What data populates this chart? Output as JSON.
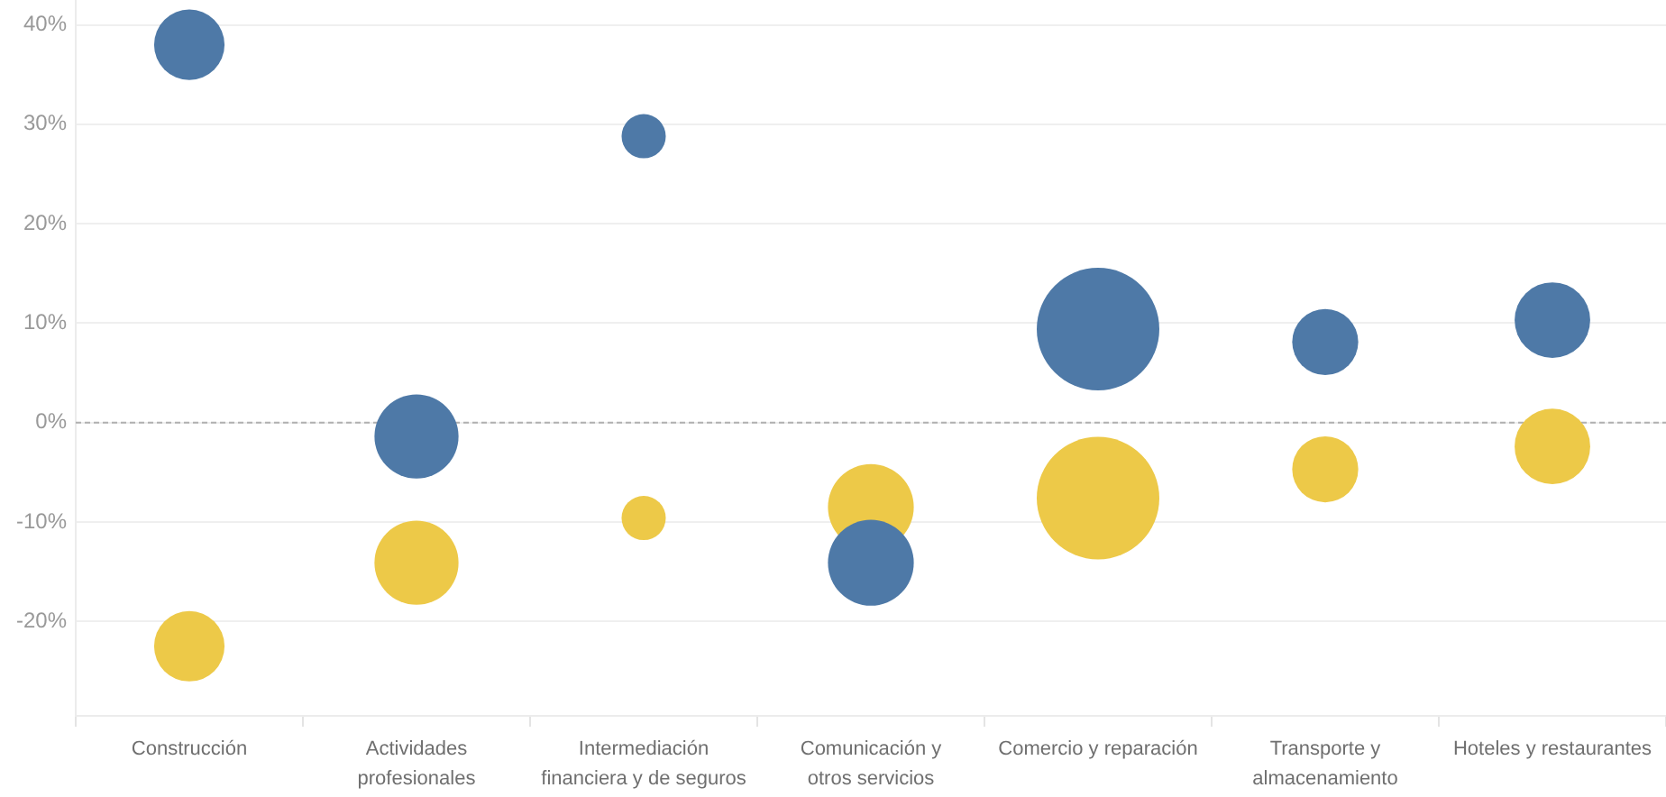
{
  "chart_data": {
    "type": "bubble",
    "categories": [
      "Construcción",
      "Actividades profesionales",
      "Intermediación financiera y de seguros",
      "Comunicación y otros servicios",
      "Comercio y reparación",
      "Transporte y almacenamiento",
      "Hoteles y restaurantes"
    ],
    "series": [
      {
        "color": "#4e79a7",
        "values": [
          38,
          -1.4,
          28.8,
          -14.1,
          9.4,
          8.1,
          10.3
        ],
        "sizes": [
          0.33,
          0.47,
          0.13,
          0.49,
          1,
          0.29,
          0.38
        ]
      },
      {
        "color": "#edc948",
        "values": [
          -22.5,
          -14.1,
          -9.6,
          -8.5,
          -7.6,
          -4.7,
          -2.4
        ],
        "sizes": [
          0.33,
          0.47,
          0.13,
          0.49,
          1,
          0.29,
          0.38
        ]
      }
    ],
    "ylim": [
      -29.5,
      42.5
    ],
    "yticks": [
      {
        "value": -20,
        "label": "-20%"
      },
      {
        "value": -10,
        "label": "-10%"
      },
      {
        "value": 0,
        "label": "0%"
      },
      {
        "value": 10,
        "label": "10%"
      },
      {
        "value": 20,
        "label": "20%"
      },
      {
        "value": 30,
        "label": "30%"
      },
      {
        "value": 40,
        "label": "40%"
      }
    ],
    "grid": "y",
    "ref_lines": [
      {
        "axis": "y",
        "value": 0,
        "color": "#b0b0b0",
        "line_style": "dashed"
      }
    ]
  }
}
